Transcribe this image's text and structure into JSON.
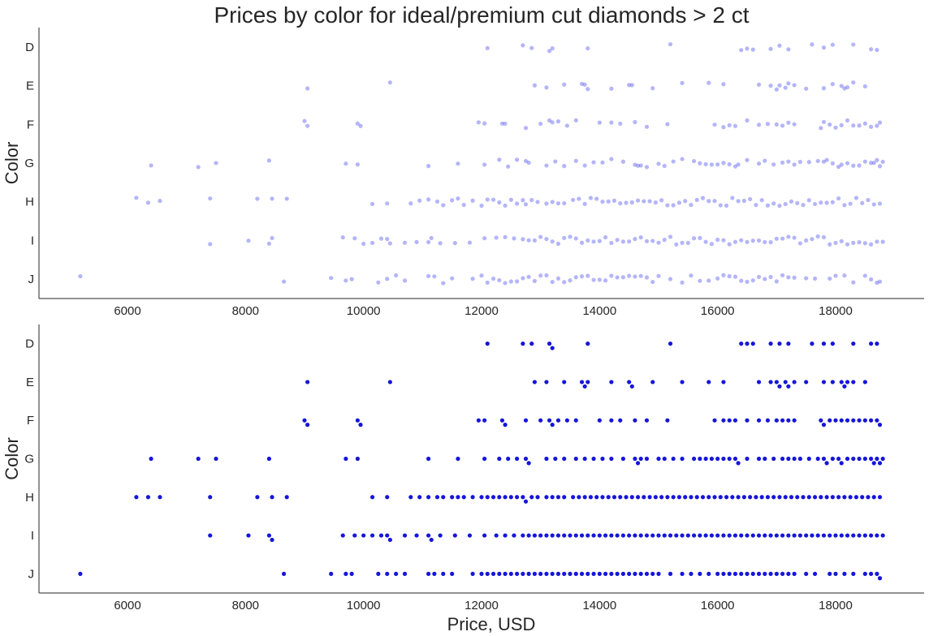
{
  "title": "Prices by color for ideal/premium cut diamonds > 2 ct",
  "colors": {
    "strip_point": "#5b5bf0",
    "swarm_point": "#1616d8",
    "axis": "#262626"
  },
  "chart_data": [
    {
      "type": "scatter",
      "variant": "strip",
      "ylabel": "Color",
      "xlabel": "",
      "categories": [
        "D",
        "E",
        "F",
        "G",
        "H",
        "I",
        "J"
      ],
      "x_ticks": [
        6000,
        8000,
        10000,
        12000,
        14000,
        16000,
        18000
      ],
      "xlim": [
        4500,
        19500
      ],
      "point_opacity": 0.45,
      "jitter": true,
      "series": [
        {
          "category": "D",
          "x": [
            12100,
            12700,
            12850,
            13150,
            13200,
            13800,
            15200,
            16400,
            16500,
            16600,
            16900,
            17050,
            17200,
            17600,
            17800,
            17950,
            18300,
            18600,
            18700
          ]
        },
        {
          "category": "E",
          "x": [
            9050,
            10450,
            12900,
            13100,
            13400,
            13700,
            13750,
            13800,
            14200,
            14500,
            14550,
            14900,
            15400,
            15850,
            16100,
            16700,
            16900,
            17000,
            17050,
            17150,
            17200,
            17300,
            17500,
            17800,
            17950,
            18100,
            18150,
            18200,
            18300,
            18500
          ]
        },
        {
          "category": "F",
          "x": [
            9000,
            9050,
            9900,
            9950,
            11950,
            12050,
            12350,
            12400,
            12750,
            13000,
            13150,
            13200,
            13300,
            13450,
            13600,
            14000,
            14200,
            14350,
            14600,
            14800,
            15150,
            15950,
            16100,
            16200,
            16300,
            16500,
            16700,
            16850,
            17000,
            17100,
            17200,
            17300,
            17750,
            17800,
            17900,
            18000,
            18100,
            18200,
            18300,
            18400,
            18500,
            18600,
            18700,
            18750
          ]
        },
        {
          "category": "G",
          "x": [
            6400,
            7200,
            7500,
            8400,
            9700,
            9900,
            11100,
            11600,
            12050,
            12300,
            12450,
            12600,
            12750,
            12800,
            13100,
            13250,
            13400,
            13600,
            13750,
            13900,
            14050,
            14200,
            14400,
            14600,
            14650,
            14700,
            14800,
            15000,
            15100,
            15250,
            15400,
            15600,
            15700,
            15800,
            15900,
            16000,
            16100,
            16200,
            16300,
            16350,
            16500,
            16700,
            16800,
            16950,
            17100,
            17200,
            17300,
            17400,
            17550,
            17700,
            17800,
            17850,
            17950,
            18050,
            18100,
            18200,
            18300,
            18400,
            18500,
            18600,
            18650,
            18700,
            18750,
            18800
          ]
        },
        {
          "category": "H",
          "x": [
            6150,
            6350,
            6550,
            7400,
            8200,
            8450,
            8700,
            10150,
            10400,
            10800,
            10950,
            11100,
            11250,
            11350,
            11500,
            11600,
            11700,
            11850,
            12000,
            12100,
            12200,
            12300,
            12400,
            12500,
            12600,
            12700,
            12750,
            12850,
            12950,
            13100,
            13200,
            13300,
            13400,
            13550,
            13650,
            13750,
            13850,
            13950,
            14050,
            14150,
            14250,
            14350,
            14450,
            14550,
            14650,
            14750,
            14850,
            14950,
            15050,
            15150,
            15250,
            15350,
            15450,
            15550,
            15650,
            15750,
            15850,
            15950,
            16050,
            16150,
            16250,
            16350,
            16450,
            16550,
            16650,
            16750,
            16850,
            16950,
            17050,
            17150,
            17250,
            17350,
            17450,
            17550,
            17650,
            17750,
            17850,
            17950,
            18050,
            18150,
            18250,
            18350,
            18450,
            18550,
            18650,
            18750
          ]
        },
        {
          "category": "I",
          "x": [
            7400,
            8050,
            8400,
            8450,
            9650,
            9850,
            10000,
            10150,
            10300,
            10400,
            10450,
            10700,
            10900,
            11100,
            11150,
            11300,
            11550,
            11800,
            12050,
            12250,
            12400,
            12550,
            12700,
            12800,
            12900,
            13000,
            13100,
            13200,
            13300,
            13400,
            13500,
            13600,
            13700,
            13800,
            13900,
            14000,
            14100,
            14200,
            14300,
            14400,
            14500,
            14600,
            14700,
            14800,
            14900,
            15000,
            15100,
            15200,
            15300,
            15400,
            15500,
            15600,
            15700,
            15800,
            15900,
            16000,
            16100,
            16200,
            16300,
            16400,
            16500,
            16600,
            16700,
            16800,
            16900,
            17000,
            17100,
            17200,
            17300,
            17400,
            17500,
            17600,
            17700,
            17800,
            17900,
            18000,
            18100,
            18200,
            18300,
            18400,
            18500,
            18600,
            18700,
            18800
          ]
        },
        {
          "category": "J",
          "x": [
            5200,
            8650,
            9450,
            9700,
            9800,
            10250,
            10400,
            10550,
            10700,
            11100,
            11200,
            11350,
            11500,
            11850,
            12000,
            12100,
            12200,
            12300,
            12400,
            12500,
            12600,
            12700,
            12800,
            12900,
            13000,
            13100,
            13200,
            13300,
            13400,
            13500,
            13600,
            13700,
            13800,
            13900,
            14000,
            14100,
            14200,
            14300,
            14400,
            14500,
            14600,
            14700,
            14800,
            14900,
            15000,
            15200,
            15400,
            15550,
            15700,
            15850,
            16000,
            16100,
            16200,
            16300,
            16400,
            16500,
            16600,
            16700,
            16800,
            16900,
            17000,
            17100,
            17200,
            17300,
            17500,
            17650,
            17900,
            18000,
            18150,
            18300,
            18500,
            18600,
            18700,
            18750
          ]
        }
      ]
    },
    {
      "type": "scatter",
      "variant": "swarm",
      "ylabel": "Color",
      "xlabel": "Price, USD",
      "categories": [
        "D",
        "E",
        "F",
        "G",
        "H",
        "I",
        "J"
      ],
      "x_ticks": [
        6000,
        8000,
        10000,
        12000,
        14000,
        16000,
        18000
      ],
      "xlim": [
        4500,
        19500
      ],
      "point_opacity": 1.0,
      "swarm": true,
      "series_source": "same as strip panel"
    }
  ]
}
